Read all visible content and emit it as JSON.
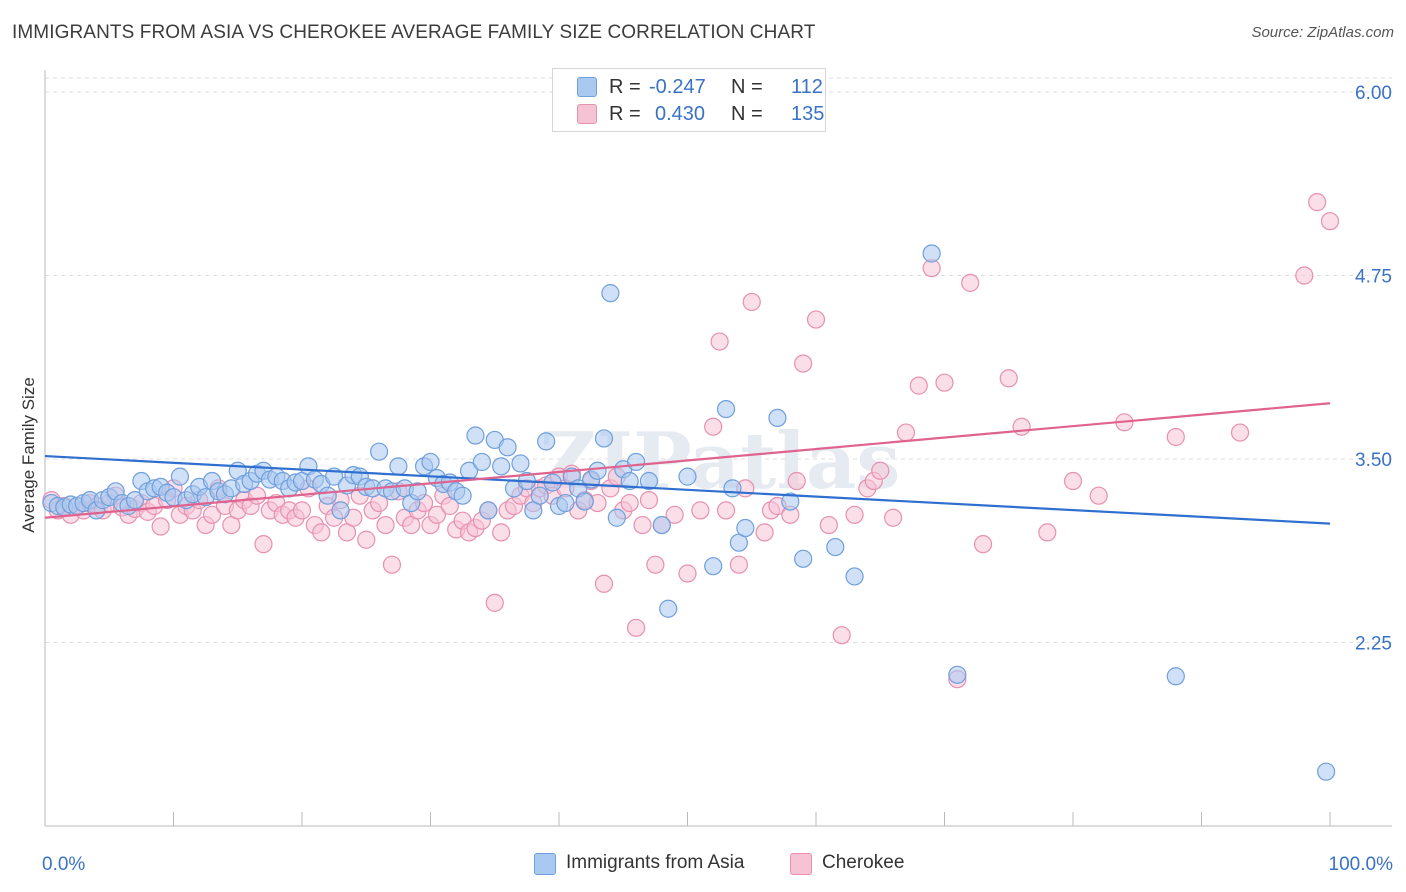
{
  "title": "IMMIGRANTS FROM ASIA VS CHEROKEE AVERAGE FAMILY SIZE CORRELATION CHART",
  "source": "Source: ZipAtlas.com",
  "legend": {
    "r_label": "R =",
    "n_label": "N =",
    "rows": [
      {
        "name": "Immigrants from Asia",
        "r": "-0.247",
        "n": "112",
        "color": "#7eaee8"
      },
      {
        "name": "Cherokee",
        "r": "0.430",
        "n": "135",
        "color": "#f0a0bd"
      }
    ]
  },
  "colors": {
    "blue_fill": "#a9c9f0",
    "blue_stroke": "#6f9fdc",
    "blue_line": "#2e6fd0",
    "pink_fill": "#f6c3d5",
    "pink_stroke": "#e890b0",
    "pink_line": "#e0628e",
    "axis_text": "#3a72c8",
    "grid": "#dddddd"
  },
  "chart_data": {
    "type": "scatter",
    "title": "IMMIGRANTS FROM ASIA VS CHEROKEE AVERAGE FAMILY SIZE CORRELATION CHART",
    "xlabel": "",
    "ylabel": "Average Family Size",
    "xlim": [
      0,
      100
    ],
    "ylim": [
      1.0,
      6.15
    ],
    "x_tick_labels": [
      "0.0%",
      "100.0%"
    ],
    "y_ticks": [
      6.0,
      4.75,
      3.5,
      2.25
    ],
    "y_tick_labels": [
      "6.00",
      "4.75",
      "3.50",
      "2.25"
    ],
    "watermark": "ZIPatlas",
    "series": [
      {
        "name": "Immigrants from Asia",
        "trend": {
          "x": [
            0,
            100
          ],
          "y": [
            3.52,
            3.06
          ]
        },
        "points": [
          [
            0.5,
            3.2
          ],
          [
            1,
            3.18
          ],
          [
            1.5,
            3.17
          ],
          [
            2,
            3.19
          ],
          [
            2.5,
            3.18
          ],
          [
            3,
            3.2
          ],
          [
            3.5,
            3.22
          ],
          [
            4,
            3.15
          ],
          [
            4.5,
            3.22
          ],
          [
            5,
            3.24
          ],
          [
            5.5,
            3.28
          ],
          [
            6,
            3.2
          ],
          [
            6.5,
            3.18
          ],
          [
            7,
            3.22
          ],
          [
            7.5,
            3.35
          ],
          [
            8,
            3.28
          ],
          [
            8.5,
            3.3
          ],
          [
            9,
            3.31
          ],
          [
            9.5,
            3.27
          ],
          [
            10,
            3.24
          ],
          [
            10.5,
            3.38
          ],
          [
            11,
            3.22
          ],
          [
            11.5,
            3.26
          ],
          [
            12,
            3.31
          ],
          [
            12.5,
            3.24
          ],
          [
            13,
            3.35
          ],
          [
            13.5,
            3.28
          ],
          [
            14,
            3.26
          ],
          [
            14.5,
            3.3
          ],
          [
            15,
            3.42
          ],
          [
            15.5,
            3.33
          ],
          [
            16,
            3.35
          ],
          [
            16.5,
            3.4
          ],
          [
            17,
            3.42
          ],
          [
            17.5,
            3.36
          ],
          [
            18,
            3.38
          ],
          [
            18.5,
            3.35
          ],
          [
            19,
            3.3
          ],
          [
            19.5,
            3.34
          ],
          [
            20,
            3.35
          ],
          [
            20.5,
            3.45
          ],
          [
            21,
            3.36
          ],
          [
            21.5,
            3.33
          ],
          [
            22,
            3.25
          ],
          [
            22.5,
            3.38
          ],
          [
            23,
            3.15
          ],
          [
            23.5,
            3.32
          ],
          [
            24,
            3.39
          ],
          [
            24.5,
            3.38
          ],
          [
            25,
            3.31
          ],
          [
            25.5,
            3.3
          ],
          [
            26,
            3.55
          ],
          [
            26.5,
            3.3
          ],
          [
            27,
            3.28
          ],
          [
            27.5,
            3.45
          ],
          [
            28,
            3.3
          ],
          [
            28.5,
            3.2
          ],
          [
            29,
            3.28
          ],
          [
            29.5,
            3.45
          ],
          [
            30,
            3.48
          ],
          [
            30.5,
            3.37
          ],
          [
            31,
            3.33
          ],
          [
            31.5,
            3.34
          ],
          [
            32,
            3.28
          ],
          [
            32.5,
            3.25
          ],
          [
            33,
            3.42
          ],
          [
            33.5,
            3.66
          ],
          [
            34,
            3.48
          ],
          [
            34.5,
            3.15
          ],
          [
            35,
            3.63
          ],
          [
            35.5,
            3.45
          ],
          [
            36,
            3.58
          ],
          [
            36.5,
            3.3
          ],
          [
            37,
            3.47
          ],
          [
            37.5,
            3.35
          ],
          [
            38,
            3.15
          ],
          [
            38.5,
            3.25
          ],
          [
            39,
            3.62
          ],
          [
            39.5,
            3.34
          ],
          [
            40,
            3.18
          ],
          [
            40.5,
            3.2
          ],
          [
            41,
            3.38
          ],
          [
            41.5,
            3.3
          ],
          [
            42,
            3.21
          ],
          [
            42.5,
            3.36
          ],
          [
            43,
            3.42
          ],
          [
            43.5,
            3.64
          ],
          [
            44,
            4.63
          ],
          [
            44.5,
            3.1
          ],
          [
            45,
            3.43
          ],
          [
            45.5,
            3.35
          ],
          [
            46,
            3.48
          ],
          [
            47,
            3.35
          ],
          [
            48,
            3.05
          ],
          [
            48.5,
            2.48
          ],
          [
            50,
            3.38
          ],
          [
            52,
            2.77
          ],
          [
            53,
            3.84
          ],
          [
            53.5,
            3.3
          ],
          [
            54,
            2.93
          ],
          [
            54.5,
            3.03
          ],
          [
            57,
            3.78
          ],
          [
            58,
            3.21
          ],
          [
            59,
            2.82
          ],
          [
            61.5,
            2.9
          ],
          [
            63,
            2.7
          ],
          [
            69,
            4.9
          ],
          [
            71,
            2.03
          ],
          [
            88,
            2.02
          ],
          [
            99.7,
            1.37
          ]
        ]
      },
      {
        "name": "Cherokee",
        "trend": {
          "x": [
            0,
            100
          ],
          "y": [
            3.1,
            3.88
          ]
        },
        "points": [
          [
            0.5,
            3.22
          ],
          [
            1,
            3.15
          ],
          [
            1.5,
            3.18
          ],
          [
            2,
            3.12
          ],
          [
            2.5,
            3.18
          ],
          [
            3,
            3.15
          ],
          [
            3.5,
            3.2
          ],
          [
            4,
            3.18
          ],
          [
            4.5,
            3.15
          ],
          [
            5,
            3.2
          ],
          [
            5.5,
            3.25
          ],
          [
            6,
            3.17
          ],
          [
            6.5,
            3.12
          ],
          [
            7,
            3.16
          ],
          [
            7.5,
            3.2
          ],
          [
            8,
            3.14
          ],
          [
            8.5,
            3.18
          ],
          [
            9,
            3.04
          ],
          [
            9.5,
            3.22
          ],
          [
            10,
            3.3
          ],
          [
            10.5,
            3.12
          ],
          [
            11,
            3.18
          ],
          [
            11.5,
            3.15
          ],
          [
            12,
            3.22
          ],
          [
            12.5,
            3.05
          ],
          [
            13,
            3.12
          ],
          [
            13.5,
            3.3
          ],
          [
            14,
            3.18
          ],
          [
            14.5,
            3.05
          ],
          [
            15,
            3.15
          ],
          [
            15.5,
            3.22
          ],
          [
            16,
            3.18
          ],
          [
            16.5,
            3.25
          ],
          [
            17,
            2.92
          ],
          [
            17.5,
            3.15
          ],
          [
            18,
            3.2
          ],
          [
            18.5,
            3.12
          ],
          [
            19,
            3.15
          ],
          [
            19.5,
            3.1
          ],
          [
            20,
            3.15
          ],
          [
            20.5,
            3.3
          ],
          [
            21,
            3.05
          ],
          [
            21.5,
            3.0
          ],
          [
            22,
            3.18
          ],
          [
            22.5,
            3.1
          ],
          [
            23,
            3.22
          ],
          [
            23.5,
            3.0
          ],
          [
            24,
            3.1
          ],
          [
            24.5,
            3.25
          ],
          [
            25,
            2.95
          ],
          [
            25.5,
            3.15
          ],
          [
            26,
            3.2
          ],
          [
            26.5,
            3.05
          ],
          [
            27,
            2.78
          ],
          [
            27.5,
            3.28
          ],
          [
            28,
            3.1
          ],
          [
            28.5,
            3.05
          ],
          [
            29,
            3.15
          ],
          [
            29.5,
            3.2
          ],
          [
            30,
            3.05
          ],
          [
            30.5,
            3.12
          ],
          [
            31,
            3.25
          ],
          [
            31.5,
            3.18
          ],
          [
            32,
            3.02
          ],
          [
            32.5,
            3.08
          ],
          [
            33,
            3.0
          ],
          [
            33.5,
            3.03
          ],
          [
            34,
            3.08
          ],
          [
            34.5,
            3.15
          ],
          [
            35,
            2.52
          ],
          [
            35.5,
            3.0
          ],
          [
            36,
            3.15
          ],
          [
            36.5,
            3.18
          ],
          [
            37,
            3.25
          ],
          [
            37.5,
            3.3
          ],
          [
            38,
            3.2
          ],
          [
            38.5,
            3.3
          ],
          [
            39,
            3.32
          ],
          [
            39.5,
            3.25
          ],
          [
            40,
            3.38
          ],
          [
            40.5,
            3.3
          ],
          [
            41,
            3.4
          ],
          [
            41.5,
            3.15
          ],
          [
            42,
            3.22
          ],
          [
            42.5,
            3.35
          ],
          [
            43,
            3.2
          ],
          [
            43.5,
            2.65
          ],
          [
            44,
            3.3
          ],
          [
            44.5,
            3.38
          ],
          [
            45,
            3.15
          ],
          [
            45.5,
            3.2
          ],
          [
            46,
            2.35
          ],
          [
            46.5,
            3.05
          ],
          [
            47,
            3.22
          ],
          [
            47.5,
            2.78
          ],
          [
            48,
            3.05
          ],
          [
            49,
            3.12
          ],
          [
            50,
            2.72
          ],
          [
            51,
            3.15
          ],
          [
            52,
            3.72
          ],
          [
            52.5,
            4.3
          ],
          [
            53,
            3.15
          ],
          [
            54,
            2.78
          ],
          [
            54.5,
            3.3
          ],
          [
            55,
            4.57
          ],
          [
            56,
            3.0
          ],
          [
            56.5,
            3.15
          ],
          [
            57,
            3.18
          ],
          [
            58,
            3.12
          ],
          [
            58.5,
            3.35
          ],
          [
            59,
            4.15
          ],
          [
            60,
            4.45
          ],
          [
            61,
            3.05
          ],
          [
            62,
            2.3
          ],
          [
            63,
            3.12
          ],
          [
            64,
            3.3
          ],
          [
            64.5,
            3.35
          ],
          [
            65,
            3.42
          ],
          [
            66,
            3.1
          ],
          [
            67,
            3.68
          ],
          [
            68,
            4.0
          ],
          [
            69,
            4.8
          ],
          [
            70,
            4.02
          ],
          [
            71,
            2.0
          ],
          [
            72,
            4.7
          ],
          [
            73,
            2.92
          ],
          [
            75,
            4.05
          ],
          [
            76,
            3.72
          ],
          [
            78,
            3.0
          ],
          [
            80,
            3.35
          ],
          [
            82,
            3.25
          ],
          [
            84,
            3.75
          ],
          [
            88,
            3.65
          ],
          [
            93,
            3.68
          ],
          [
            98,
            4.75
          ],
          [
            99,
            5.25
          ],
          [
            100,
            5.12
          ]
        ]
      }
    ]
  },
  "bottom_legend": [
    {
      "name": "Immigrants from Asia"
    },
    {
      "name": "Cherokee"
    }
  ]
}
